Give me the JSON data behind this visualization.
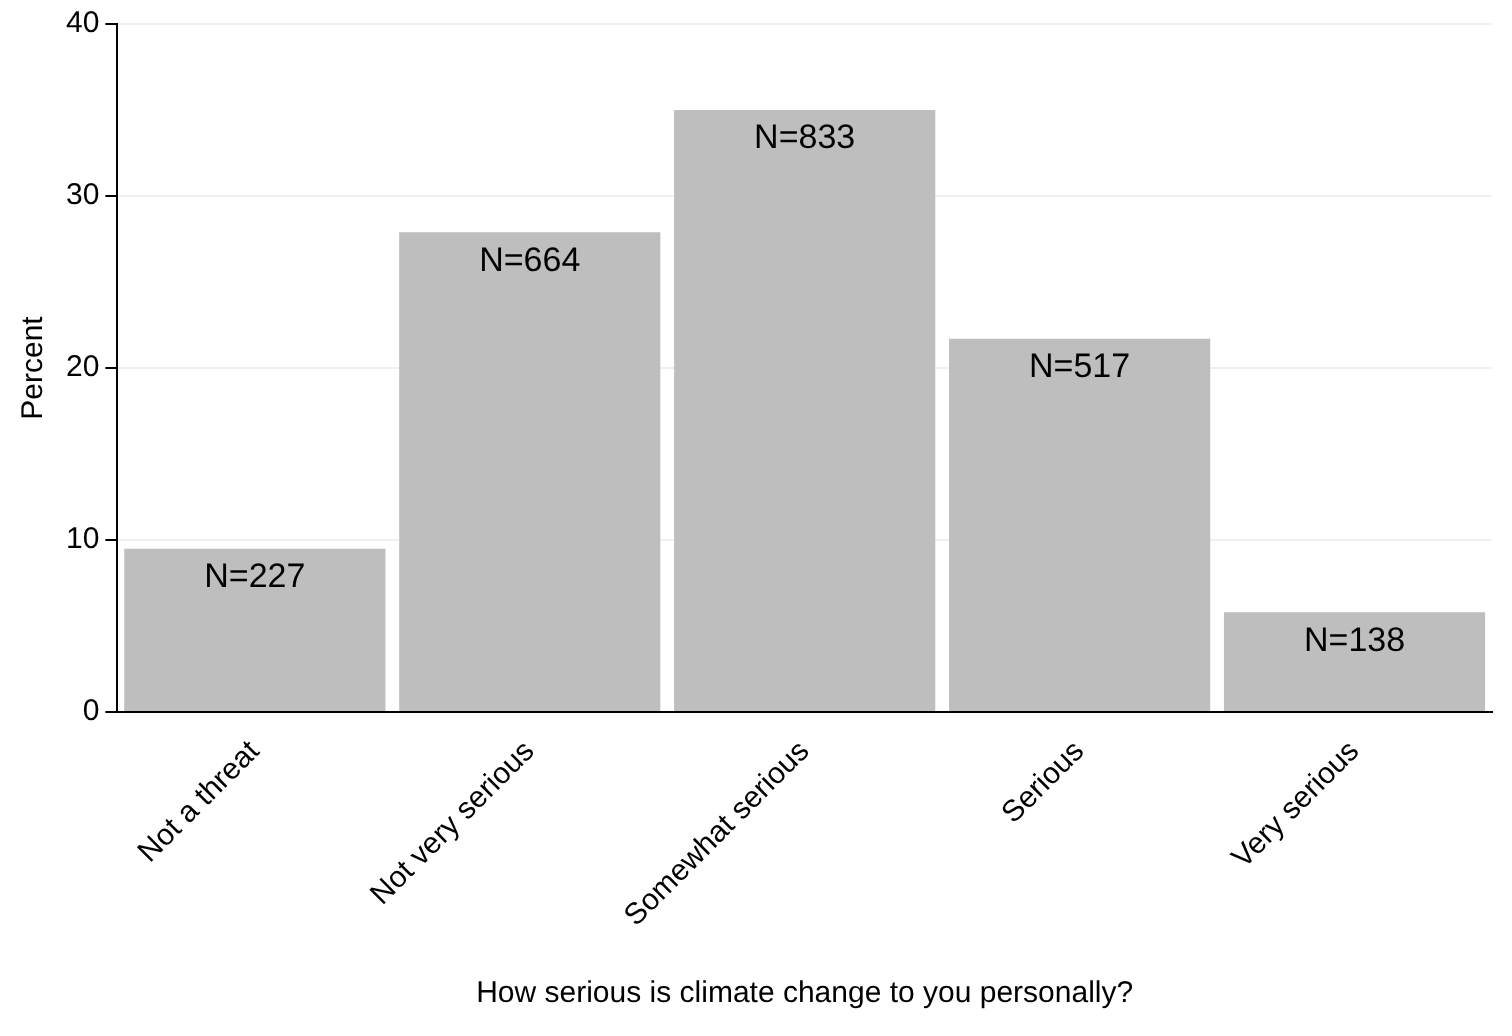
{
  "chart_data": {
    "type": "bar",
    "xlabel": "How serious is climate change to you personally?",
    "ylabel": "Percent",
    "categories": [
      "Not a threat",
      "Not very serious",
      "Somewhat serious",
      "Serious",
      "Very serious"
    ],
    "values": [
      9.5,
      27.9,
      35.0,
      21.7,
      5.8
    ],
    "annotations": [
      {
        "text": "N=227",
        "x": "Not a threat",
        "y": 9.5
      },
      {
        "text": "N=664",
        "x": "Not very serious",
        "y": 27.9
      },
      {
        "text": "N=833",
        "x": "Somewhat serious",
        "y": 35.0
      },
      {
        "text": "N=517",
        "x": "Serious",
        "y": 21.7
      },
      {
        "text": "N=138",
        "x": "Very serious",
        "y": 5.8
      }
    ],
    "color": "#bebebe",
    "ylim": [
      0,
      40
    ],
    "yticks": [
      0,
      10,
      20,
      30,
      40
    ],
    "grid": "y",
    "legend": false
  }
}
